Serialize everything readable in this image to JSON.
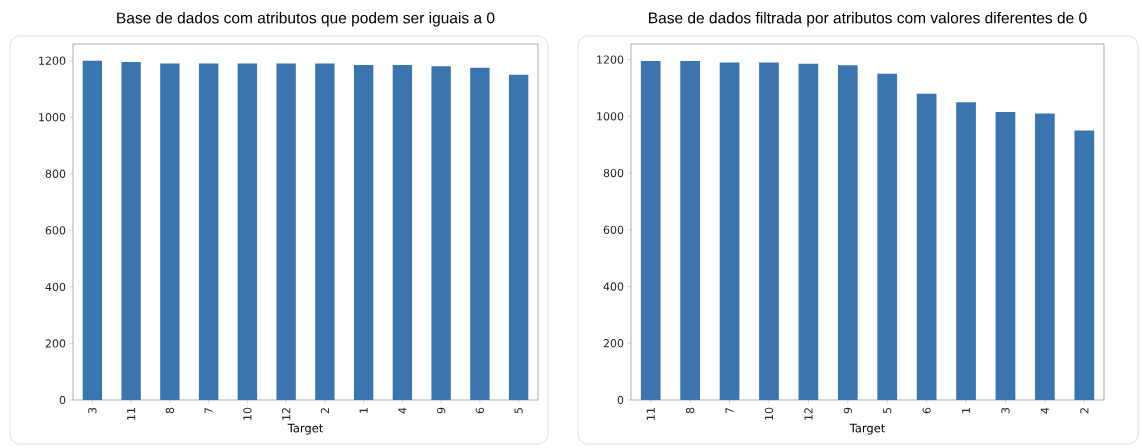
{
  "chart_data": [
    {
      "type": "bar",
      "title": "Base de dados com atributos que podem ser iguais a 0",
      "xlabel": "Target",
      "categories": [
        "3",
        "11",
        "8",
        "7",
        "10",
        "12",
        "2",
        "1",
        "4",
        "9",
        "6",
        "5"
      ],
      "values": [
        1200,
        1195,
        1190,
        1190,
        1190,
        1190,
        1190,
        1185,
        1185,
        1180,
        1175,
        1150
      ],
      "color": "#3a75af",
      "ylim": [
        0,
        1259
      ],
      "yticks": [
        0,
        200,
        400,
        600,
        800,
        1000,
        1200
      ]
    },
    {
      "type": "bar",
      "title": "Base de dados filtrada por atributos com valores diferentes de 0",
      "xlabel": "Target",
      "categories": [
        "11",
        "8",
        "7",
        "10",
        "12",
        "9",
        "5",
        "6",
        "1",
        "3",
        "4",
        "2"
      ],
      "values": [
        1195,
        1195,
        1190,
        1190,
        1185,
        1180,
        1150,
        1080,
        1050,
        1015,
        1010,
        950
      ],
      "color": "#3a75af",
      "ylim": [
        0,
        1255
      ],
      "yticks": [
        0,
        200,
        400,
        600,
        800,
        1000,
        1200
      ]
    }
  ]
}
